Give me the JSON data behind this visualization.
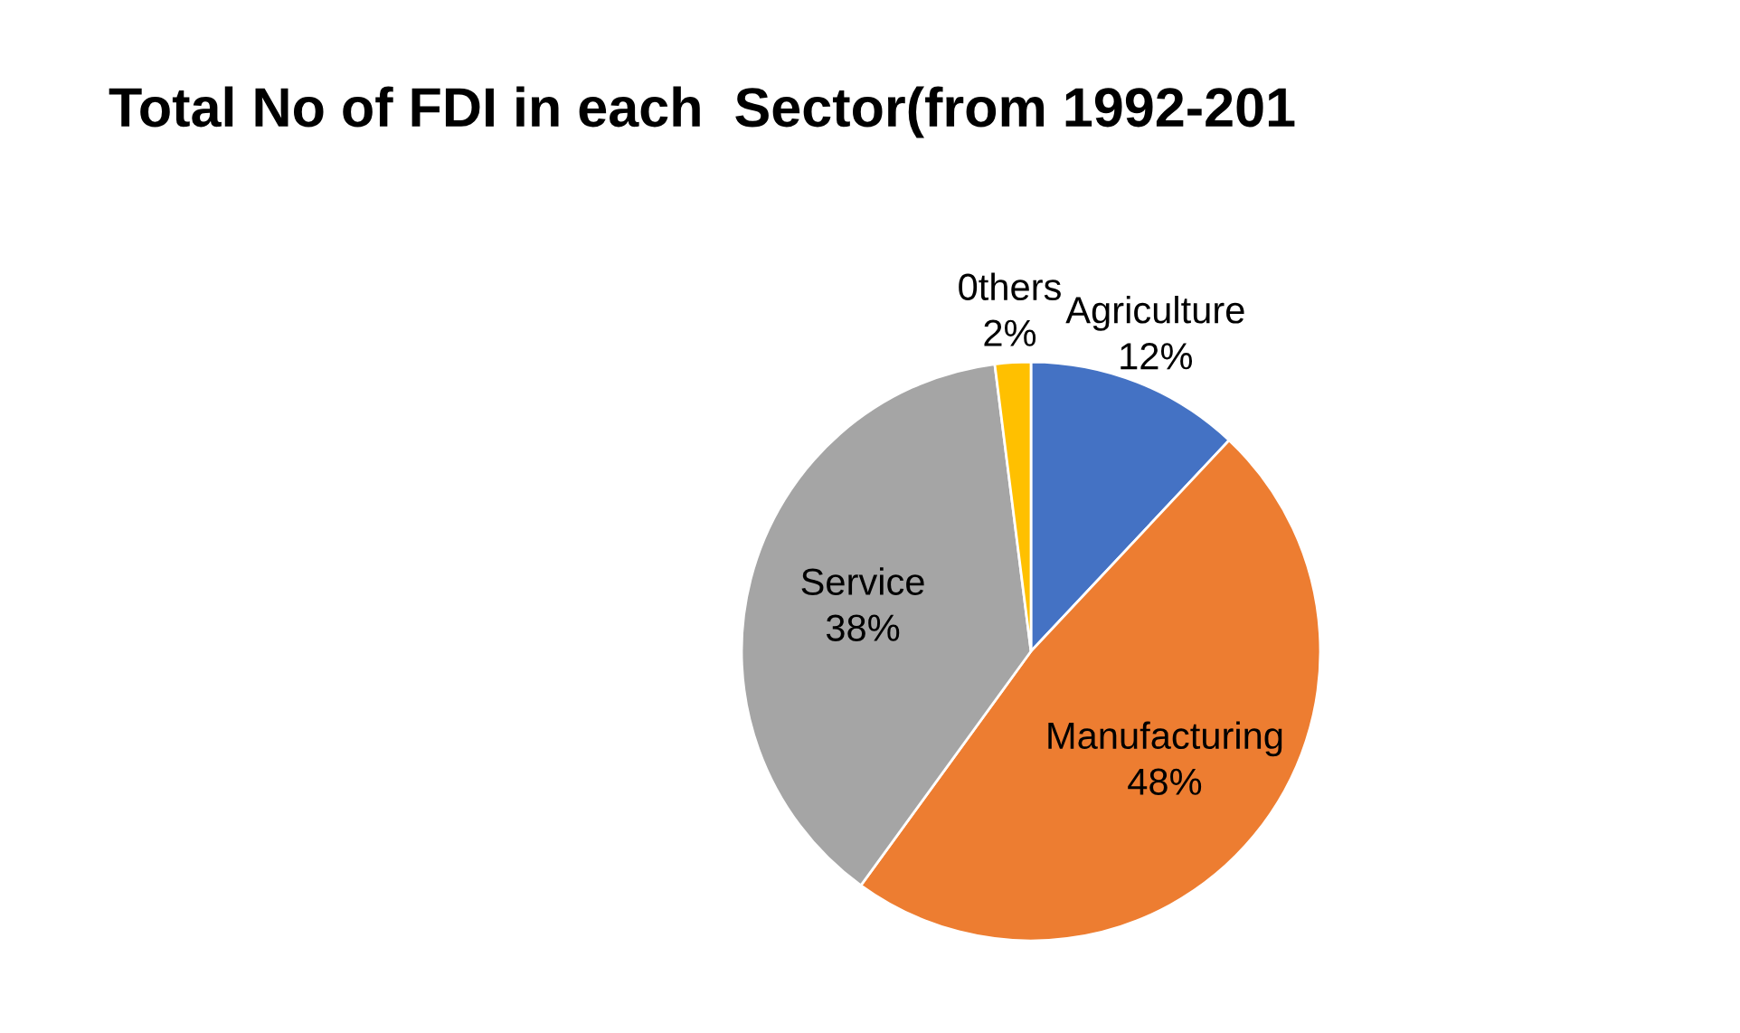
{
  "chart_data": {
    "type": "pie",
    "title": "Total No of FDI in each  Sector(from 1992-201",
    "categories": [
      "Agriculture",
      "Manufacturing",
      "Service",
      "0thers"
    ],
    "values": [
      12,
      48,
      38,
      2
    ],
    "colors": [
      "#4472c4",
      "#ed7d31",
      "#a5a5a5",
      "#ffc000"
    ],
    "value_labels": [
      "12%",
      "48%",
      "38%",
      "2%"
    ]
  }
}
